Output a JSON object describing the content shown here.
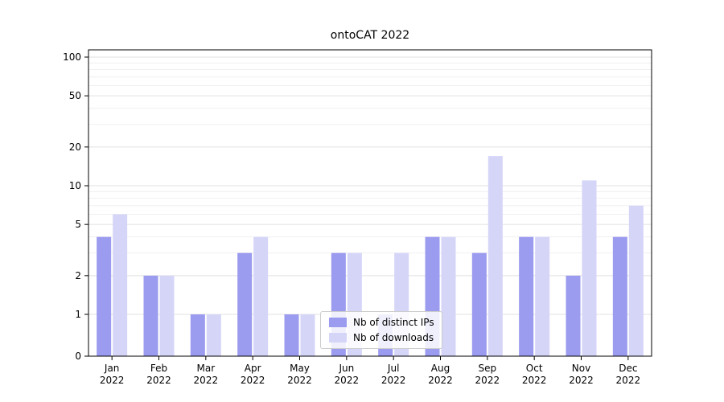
{
  "title": "ontoCAT 2022",
  "chart_data": {
    "type": "bar",
    "scale": "symlog",
    "title": "ontoCAT 2022",
    "xlabel": "",
    "ylabel": "",
    "categories": [
      "Jan",
      "Feb",
      "Mar",
      "Apr",
      "May",
      "Jun",
      "Jul",
      "Aug",
      "Sep",
      "Oct",
      "Nov",
      "Dec"
    ],
    "category_year": "2022",
    "series": [
      {
        "name": "Nb of distinct IPs",
        "color": "#9b9bef",
        "values": [
          4,
          2,
          1,
          3,
          1,
          3,
          1,
          4,
          3,
          4,
          2,
          4
        ]
      },
      {
        "name": "Nb of downloads",
        "color": "#d5d5f8",
        "values": [
          6,
          2,
          1,
          4,
          1,
          3,
          3,
          4,
          17,
          4,
          11,
          7
        ]
      }
    ],
    "yticks": [
      0,
      1,
      2,
      5,
      10,
      20,
      50,
      100
    ],
    "yticks_minor": [
      3,
      4,
      6,
      7,
      8,
      9,
      30,
      40,
      60,
      70,
      80,
      90
    ],
    "ylim": [
      0,
      112
    ],
    "grid": "horizontal major+minor",
    "legend_position": "lower center",
    "colors": {
      "grid_major": "#e0e0e0",
      "grid_minor": "#f0f0f3",
      "axis": "#000000",
      "text": "#000000"
    }
  }
}
